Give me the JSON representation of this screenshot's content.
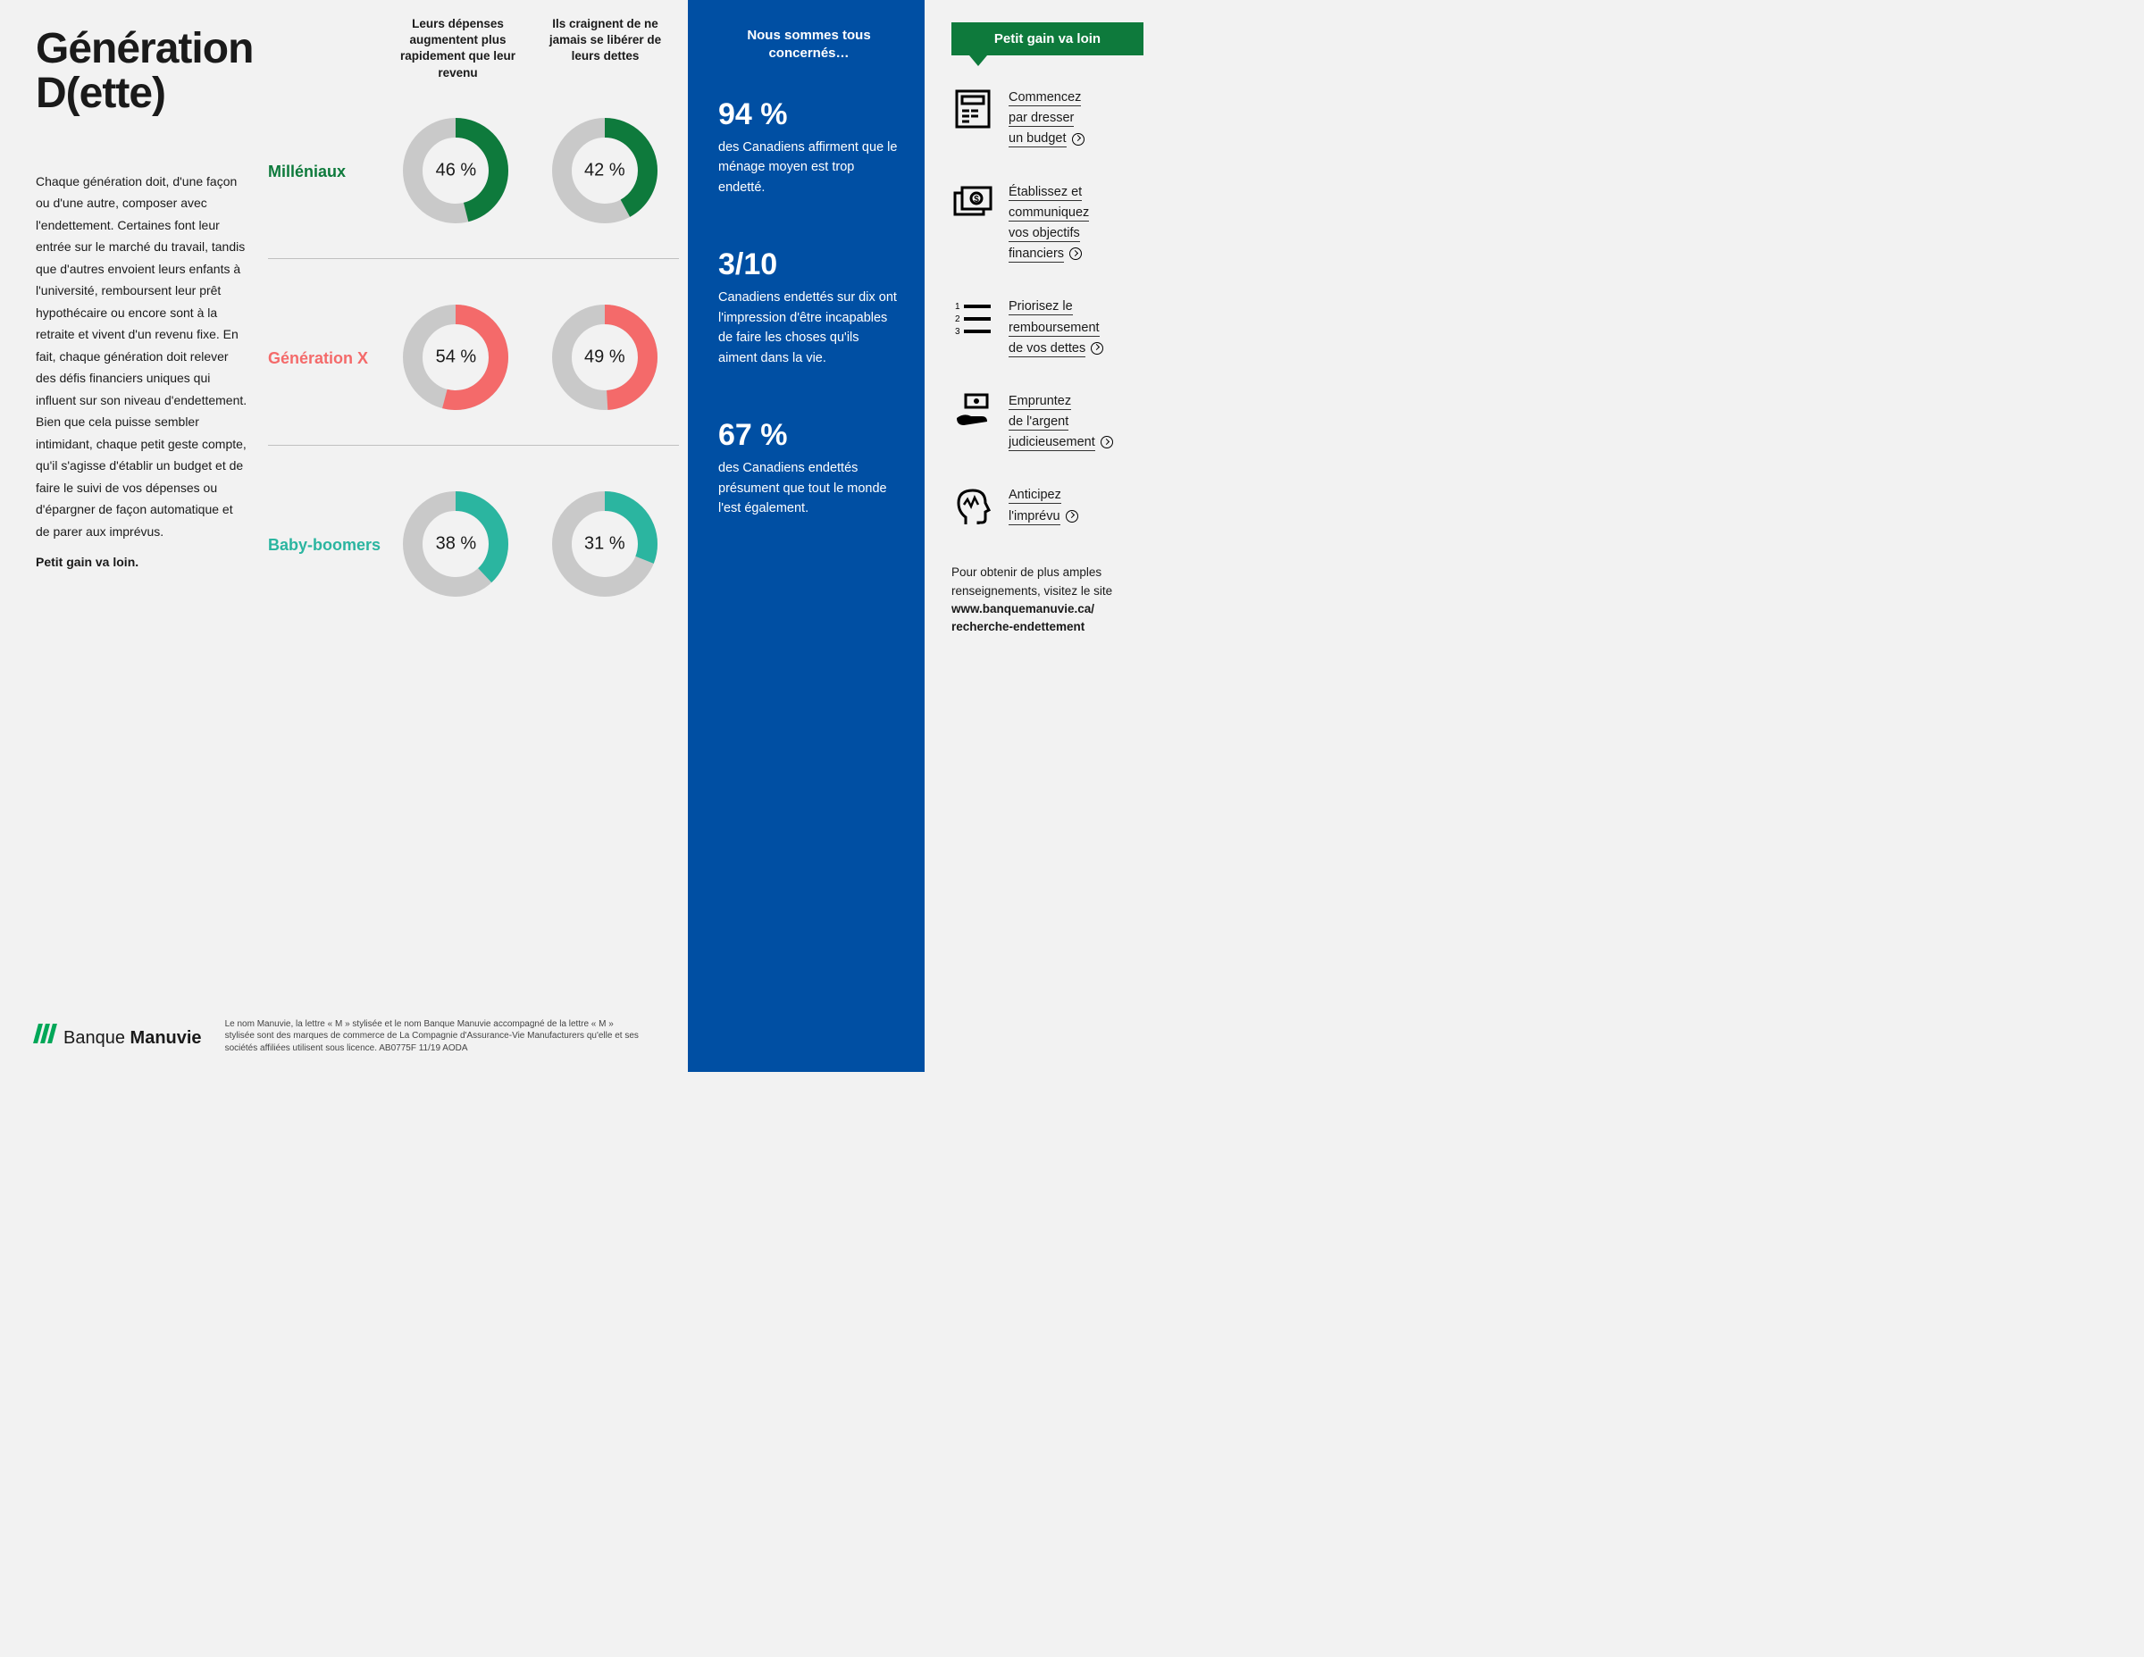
{
  "colors": {
    "page_bg": "#f2f2f2",
    "blue_panel": "#004fa3",
    "callout_green": "#0e7a3c",
    "donut_track": "#c9c9c9",
    "logo_green": "#00a758",
    "text": "#1a1a1a"
  },
  "title": "Génération D(ette)",
  "intro_paragraph": "Chaque génération doit, d'une façon ou d'une autre, composer avec l'endettement. Certaines font leur entrée sur le marché du travail, tandis que d'autres envoient leurs enfants à l'université, remboursent leur prêt hypothécaire ou encore sont à la retraite et vivent d'un revenu fixe. En fait, chaque génération doit relever des défis financiers uniques qui influent sur son niveau d'endettement. Bien que cela puisse sembler intimidant, chaque petit geste compte, qu'il s'agisse d'établir un budget et de faire le suivi de vos dépenses ou d'épargner de façon automatique et de parer aux imprévus.",
  "intro_tagline": "Petit gain va loin.",
  "chart_headers": {
    "col1": "Leurs dépenses augmentent plus rapidement que leur revenu",
    "col2": "Ils craignent de ne jamais se libérer de leurs dettes"
  },
  "donut_style": {
    "track_color": "#c9c9c9",
    "track_width": 22,
    "start_angle_deg": 0,
    "direction": "clockwise",
    "label_suffix": " %"
  },
  "generations": [
    {
      "label": "Milléniaux",
      "label_color": "#0e7a3c",
      "arc_color": "#0e7a3c",
      "values": [
        46,
        42
      ]
    },
    {
      "label": "Génération X",
      "label_color": "#f46a6a",
      "arc_color": "#f46a6a",
      "values": [
        54,
        49
      ]
    },
    {
      "label": "Baby-boomers",
      "label_color": "#2bb5a0",
      "arc_color": "#2bb5a0",
      "values": [
        38,
        31
      ]
    }
  ],
  "blue_panel": {
    "intro": "Nous sommes tous concernés…",
    "stats": [
      {
        "big": "94 %",
        "text": "des Canadiens affirment que le ménage moyen est trop endetté."
      },
      {
        "big": "3/10",
        "text": "Canadiens endettés sur dix ont l'impression d'être incapables de faire les choses qu'ils aiment dans la vie."
      },
      {
        "big": "67 %",
        "text": "des Canadiens endettés présument que tout le monde l'est également."
      }
    ]
  },
  "tips_panel": {
    "callout": "Petit gain va loin",
    "tips": [
      {
        "icon": "calculator-icon",
        "lines": [
          "Commencez",
          "par dresser",
          "un budget"
        ]
      },
      {
        "icon": "money-icon",
        "lines": [
          "Établissez et",
          "communiquez",
          "vos objectifs",
          "financiers"
        ]
      },
      {
        "icon": "list-icon",
        "lines": [
          "Priorisez le",
          "remboursement",
          "de vos dettes"
        ]
      },
      {
        "icon": "hand-cash-icon",
        "lines": [
          "Empruntez",
          "de l'argent",
          "judicieusement"
        ]
      },
      {
        "icon": "head-icon",
        "lines": [
          "Anticipez",
          "l'imprévu"
        ]
      }
    ],
    "more_info_intro": "Pour obtenir de plus amples renseignements, visitez le site",
    "more_info_url": "www.banquemanuvie.ca/ recherche-endettement"
  },
  "footer": {
    "logo_light": "Banque",
    "logo_bold": "Manuvie",
    "legal": "Le nom Manuvie, la lettre « M » stylisée et le nom Banque Manuvie accompagné de la lettre « M » stylisée sont des marques de commerce de La Compagnie d'Assurance-Vie Manufacturers qu'elle et ses sociétés affiliées utilisent sous licence.      AB0775F   11/19   AODA"
  }
}
